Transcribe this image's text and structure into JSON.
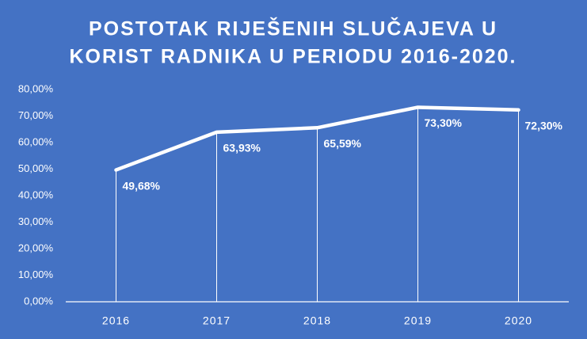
{
  "chart_data": {
    "type": "line",
    "title": [
      "POSTOTAK RIJEŠENIH SLUČAJEVA U",
      "KORIST RADNIKA U PERIODU 2016-2020."
    ],
    "categories": [
      "2016",
      "2017",
      "2018",
      "2019",
      "2020"
    ],
    "values": [
      49.68,
      63.93,
      65.59,
      73.3,
      72.3
    ],
    "value_labels": [
      "49,68%",
      "63,93%",
      "65,59%",
      "73,30%",
      "72,30%"
    ],
    "color": "#ffffff",
    "drop_lines": true,
    "ylim": [
      0,
      80
    ],
    "yticks": [
      {
        "value": 0,
        "label": "0,00%"
      },
      {
        "value": 10,
        "label": "10,00%"
      },
      {
        "value": 20,
        "label": "20,00%"
      },
      {
        "value": 30,
        "label": "30,00%"
      },
      {
        "value": 40,
        "label": "40,00%"
      },
      {
        "value": 50,
        "label": "50,00%"
      },
      {
        "value": 60,
        "label": "60,00%"
      },
      {
        "value": 70,
        "label": "70,00%"
      },
      {
        "value": 80,
        "label": "80,00%"
      }
    ]
  }
}
